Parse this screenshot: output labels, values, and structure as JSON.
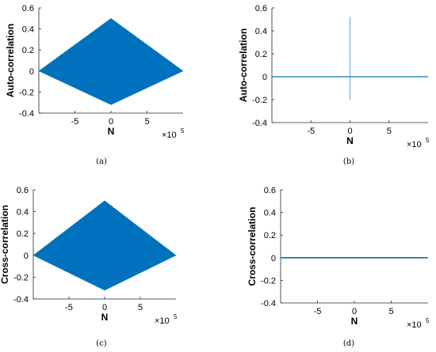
{
  "chart_data": [
    {
      "type": "area",
      "caption": "(a)",
      "xlabel": "N",
      "ylabel": "Auto-correlation",
      "x_exponent": "5",
      "xlim": [
        -10,
        10
      ],
      "ylim": [
        -0.4,
        0.6
      ],
      "xticks": [
        -5,
        0,
        5
      ],
      "xtick_labels": [
        "-5",
        "0",
        "5"
      ],
      "yticks": [
        -0.4,
        -0.2,
        0,
        0.2,
        0.4,
        0.6
      ],
      "ytick_labels": [
        "-0.4",
        "-0.2",
        "0",
        "0.2",
        "0.4",
        "0.6"
      ],
      "series": [
        {
          "style": "filled-envelope",
          "x": [
            -10,
            0,
            10,
            0
          ],
          "y": [
            0,
            0.5,
            0,
            -0.32
          ],
          "color": "#0072BD"
        }
      ]
    },
    {
      "type": "line",
      "caption": "(b)",
      "xlabel": "N",
      "ylabel": "Auto-correlation",
      "x_exponent": "5",
      "xlim": [
        -10,
        10
      ],
      "ylim": [
        -0.4,
        0.6
      ],
      "xticks": [
        -5,
        0,
        5
      ],
      "xtick_labels": [
        "-5",
        "0",
        "5"
      ],
      "yticks": [
        -0.4,
        -0.2,
        0,
        0.2,
        0.4,
        0.6
      ],
      "ytick_labels": [
        "-0.4",
        "-0.2",
        "0",
        "0.2",
        "0.4",
        "0.6"
      ],
      "series": [
        {
          "style": "spike",
          "x": [
            -10,
            0,
            0,
            0,
            10
          ],
          "y": [
            0,
            0,
            0.52,
            -0.2,
            0
          ],
          "color": "#0072BD"
        }
      ]
    },
    {
      "type": "area",
      "caption": "(c)",
      "xlabel": "N",
      "ylabel": "Cross-correlation",
      "x_exponent": "5",
      "xlim": [
        -10,
        10
      ],
      "ylim": [
        -0.4,
        0.6
      ],
      "xticks": [
        -5,
        0,
        5
      ],
      "xtick_labels": [
        "-5",
        "0",
        "5"
      ],
      "yticks": [
        -0.4,
        -0.2,
        0,
        0.2,
        0.4,
        0.6
      ],
      "ytick_labels": [
        "-0.4",
        "-0.2",
        "0",
        "0.2",
        "0.4",
        "0.6"
      ],
      "series": [
        {
          "style": "filled-envelope",
          "x": [
            -10,
            0,
            10,
            0
          ],
          "y": [
            0,
            0.5,
            0,
            -0.32
          ],
          "color": "#0072BD"
        }
      ]
    },
    {
      "type": "line",
      "caption": "(d)",
      "xlabel": "N",
      "ylabel": "Cross-correlation",
      "x_exponent": "5",
      "xlim": [
        -10,
        10
      ],
      "ylim": [
        -0.4,
        0.6
      ],
      "xticks": [
        -5,
        0,
        5
      ],
      "xtick_labels": [
        "-5",
        "0",
        "5"
      ],
      "yticks": [
        -0.4,
        -0.2,
        0,
        0.2,
        0.4,
        0.6
      ],
      "ytick_labels": [
        "-0.4",
        "-0.2",
        "0",
        "0.2",
        "0.4",
        "0.6"
      ],
      "series": [
        {
          "style": "flat-noise",
          "x": [
            -10,
            10
          ],
          "y": [
            0,
            0
          ],
          "color": "#0072BD"
        }
      ]
    }
  ]
}
